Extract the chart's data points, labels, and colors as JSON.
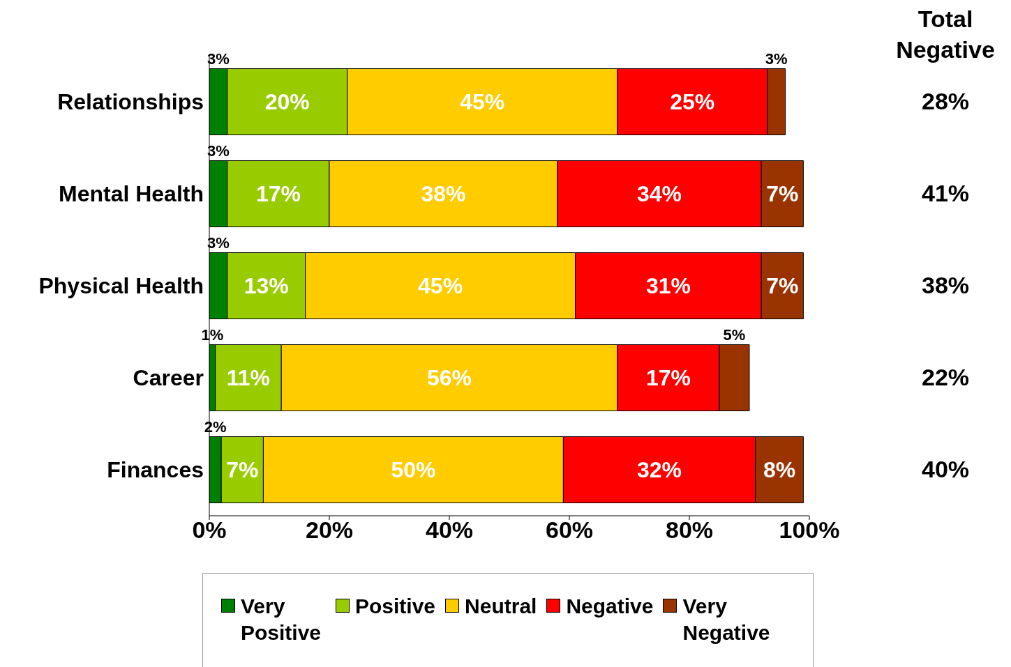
{
  "chart_data": {
    "type": "bar",
    "orientation": "horizontal",
    "stacked": true,
    "categories": [
      "Relationships",
      "Mental Health",
      "Physical Health",
      "Career",
      "Finances"
    ],
    "series": [
      {
        "name": "Very Positive",
        "color": "#008000",
        "values": [
          3,
          3,
          3,
          1,
          2
        ],
        "value_labels": [
          "3%",
          "3%",
          "3%",
          "1%",
          "2%"
        ]
      },
      {
        "name": "Positive",
        "color": "#99cc00",
        "values": [
          20,
          17,
          13,
          11,
          7
        ],
        "value_labels": [
          "20%",
          "17%",
          "13%",
          "11%",
          "7%"
        ]
      },
      {
        "name": "Neutral",
        "color": "#ffcc00",
        "values": [
          45,
          38,
          45,
          56,
          50
        ],
        "value_labels": [
          "45%",
          "38%",
          "45%",
          "56%",
          "50%"
        ]
      },
      {
        "name": "Negative",
        "color": "#ff0000",
        "values": [
          25,
          34,
          31,
          17,
          32
        ],
        "value_labels": [
          "25%",
          "34%",
          "31%",
          "17%",
          "32%"
        ]
      },
      {
        "name": "Very Negative",
        "color": "#993300",
        "values": [
          3,
          7,
          7,
          5,
          8
        ],
        "value_labels": [
          "3%",
          "7%",
          "7%",
          "5%",
          "8%"
        ]
      }
    ],
    "xlim": [
      0,
      100
    ],
    "xticks": [
      {
        "value": 0,
        "label": "0%"
      },
      {
        "value": 20,
        "label": "20%"
      },
      {
        "value": 40,
        "label": "40%"
      },
      {
        "value": 60,
        "label": "60%"
      },
      {
        "value": 80,
        "label": "80%"
      },
      {
        "value": 100,
        "label": "100%"
      }
    ],
    "annotations": [
      "Total Negative",
      "28%",
      "41%",
      "38%",
      "22%",
      "40%"
    ],
    "legend": "bottom",
    "grid": false
  }
}
